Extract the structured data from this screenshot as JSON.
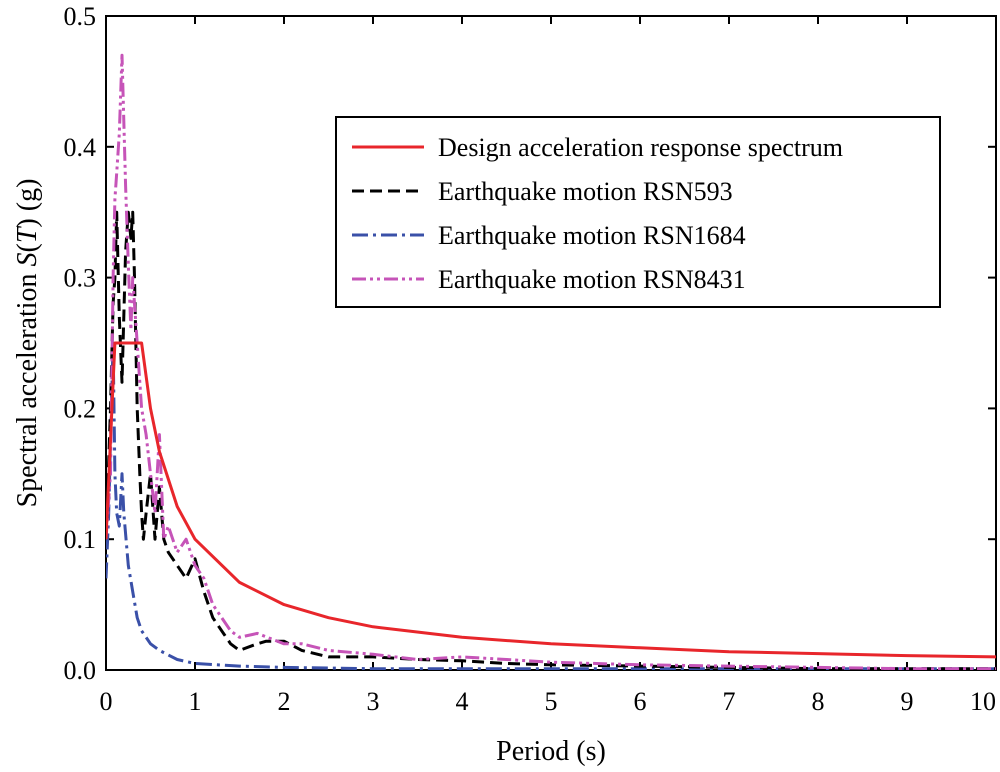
{
  "chart_data": {
    "type": "line",
    "title": "",
    "xlabel": "Period (s)",
    "ylabel_parts": [
      "Spectral acceleration ",
      "S",
      "(",
      "T",
      ") (g)"
    ],
    "xlim": [
      0,
      10
    ],
    "ylim": [
      0,
      0.5
    ],
    "x_ticks": [
      0,
      1,
      2,
      3,
      4,
      5,
      6,
      7,
      8,
      9,
      10
    ],
    "x_tick_labels": [
      "0",
      "1",
      "2",
      "3",
      "4",
      "5",
      "6",
      "7",
      "8",
      "9",
      "10"
    ],
    "y_ticks": [
      0.0,
      0.1,
      0.2,
      0.3,
      0.4,
      0.5
    ],
    "y_tick_labels": [
      "0.0",
      "0.1",
      "0.2",
      "0.3",
      "0.4",
      "0.5"
    ],
    "grid": false,
    "legend_position": "top-right",
    "series": [
      {
        "name": "Design acceleration response spectrum",
        "color": "#e8262b",
        "dash": "solid",
        "x": [
          0,
          0.1,
          0.4,
          0.5,
          0.6,
          0.8,
          1.0,
          1.5,
          2.0,
          2.5,
          3.0,
          4.0,
          5.0,
          6.0,
          7.0,
          8.0,
          9.0,
          10.0
        ],
        "y": [
          0.1,
          0.25,
          0.25,
          0.2,
          0.167,
          0.125,
          0.1,
          0.067,
          0.05,
          0.04,
          0.033,
          0.025,
          0.02,
          0.017,
          0.014,
          0.0125,
          0.011,
          0.01
        ]
      },
      {
        "name": "Earthquake motion RSN593",
        "color": "#000000",
        "dash": "dash",
        "x": [
          0,
          0.05,
          0.08,
          0.1,
          0.12,
          0.15,
          0.18,
          0.2,
          0.22,
          0.25,
          0.28,
          0.3,
          0.32,
          0.35,
          0.38,
          0.4,
          0.42,
          0.45,
          0.5,
          0.55,
          0.6,
          0.65,
          0.7,
          0.8,
          0.9,
          1.0,
          1.1,
          1.2,
          1.3,
          1.4,
          1.5,
          1.7,
          1.8,
          2.0,
          2.2,
          2.5,
          3.0,
          3.5,
          4.0,
          4.5,
          5.0,
          6.0,
          7.0,
          8.0,
          9.0,
          10.0
        ],
        "y": [
          0.1,
          0.2,
          0.28,
          0.3,
          0.35,
          0.27,
          0.22,
          0.27,
          0.32,
          0.35,
          0.33,
          0.35,
          0.3,
          0.2,
          0.15,
          0.12,
          0.1,
          0.12,
          0.15,
          0.1,
          0.14,
          0.1,
          0.09,
          0.08,
          0.07,
          0.085,
          0.06,
          0.04,
          0.03,
          0.02,
          0.015,
          0.02,
          0.022,
          0.022,
          0.015,
          0.01,
          0.01,
          0.008,
          0.007,
          0.005,
          0.004,
          0.003,
          0.002,
          0.001,
          0.001,
          0.001
        ]
      },
      {
        "name": "Earthquake motion RSN1684",
        "color": "#3a50a8",
        "dash": "dashdot",
        "x": [
          0,
          0.03,
          0.06,
          0.08,
          0.1,
          0.12,
          0.15,
          0.18,
          0.2,
          0.25,
          0.3,
          0.35,
          0.4,
          0.5,
          0.6,
          0.8,
          1.0,
          1.5,
          2.0,
          3.0,
          4.0,
          5.0,
          6.0,
          7.0,
          8.0,
          9.0,
          10.0
        ],
        "y": [
          0.07,
          0.12,
          0.2,
          0.25,
          0.15,
          0.12,
          0.11,
          0.15,
          0.12,
          0.08,
          0.06,
          0.04,
          0.03,
          0.02,
          0.015,
          0.008,
          0.005,
          0.003,
          0.002,
          0.001,
          0.001,
          0.001,
          0.001,
          0.001,
          0.001,
          0.001,
          0.001
        ]
      },
      {
        "name": "Earthquake motion RSN8431",
        "color": "#c654b8",
        "dash": "dashdotdot",
        "x": [
          0,
          0.05,
          0.08,
          0.1,
          0.12,
          0.15,
          0.18,
          0.2,
          0.22,
          0.25,
          0.28,
          0.3,
          0.32,
          0.35,
          0.38,
          0.4,
          0.45,
          0.5,
          0.55,
          0.6,
          0.65,
          0.7,
          0.8,
          0.9,
          1.0,
          1.1,
          1.2,
          1.3,
          1.4,
          1.5,
          1.7,
          2.0,
          2.2,
          2.5,
          3.0,
          3.5,
          4.0,
          4.5,
          5.0,
          6.0,
          7.0,
          8.0,
          9.0,
          10.0
        ],
        "y": [
          0.1,
          0.15,
          0.3,
          0.36,
          0.38,
          0.41,
          0.47,
          0.42,
          0.37,
          0.31,
          0.26,
          0.3,
          0.28,
          0.25,
          0.22,
          0.2,
          0.18,
          0.15,
          0.12,
          0.18,
          0.1,
          0.11,
          0.09,
          0.1,
          0.08,
          0.07,
          0.05,
          0.04,
          0.03,
          0.025,
          0.028,
          0.02,
          0.02,
          0.015,
          0.012,
          0.008,
          0.01,
          0.008,
          0.006,
          0.004,
          0.003,
          0.002,
          0.001,
          0.001
        ]
      }
    ]
  }
}
